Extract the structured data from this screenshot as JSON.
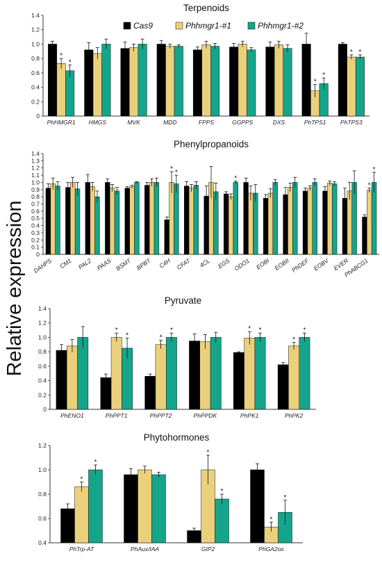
{
  "ylabel": "Relative expression",
  "series_names": [
    "Cas9",
    "Phhmgr1-#1",
    "Phhmgr1-#2"
  ],
  "colors": [
    "#000000",
    "#ebd07c",
    "#15a58a"
  ],
  "chart_data": [
    {
      "type": "bar",
      "title": "Terpenoids",
      "categories": [
        "PhHMGR1",
        "HMGS",
        "MVK",
        "MDD",
        "FPPS",
        "GGPPS",
        "DXS",
        "PhTPS1",
        "PhTPS3"
      ],
      "ylim": [
        0,
        1.4
      ],
      "yticks": [
        "0",
        "0.2",
        "0.4",
        "0.6",
        "0.8",
        "1.0",
        "1.2",
        "1.4"
      ],
      "legend": "top",
      "series": [
        {
          "name": "Cas9",
          "values": [
            1.0,
            0.92,
            0.94,
            1.0,
            0.92,
            0.96,
            0.96,
            1.0,
            1.0
          ],
          "errors": [
            0.04,
            0.1,
            0.09,
            0.05,
            0.04,
            0.05,
            0.07,
            0.15,
            0.02
          ]
        },
        {
          "name": "Phhmgr1-#1",
          "values": [
            0.73,
            0.87,
            0.95,
            0.97,
            0.99,
            1.0,
            0.99,
            0.35,
            0.82
          ],
          "errors": [
            0.07,
            0.08,
            0.05,
            0.03,
            0.05,
            0.04,
            0.05,
            0.09,
            0.03
          ]
        },
        {
          "name": "Phhmgr1-#2",
          "values": [
            0.63,
            1.0,
            1.0,
            0.97,
            0.97,
            0.92,
            0.94,
            0.45,
            0.82
          ],
          "errors": [
            0.08,
            0.07,
            0.07,
            0.02,
            0.04,
            0.03,
            0.05,
            0.08,
            0.03
          ]
        }
      ],
      "significance": [
        [
          0,
          1
        ],
        [
          0,
          2
        ],
        [
          7,
          1
        ],
        [
          7,
          2
        ],
        [
          8,
          1
        ],
        [
          8,
          2
        ]
      ]
    },
    {
      "type": "bar",
      "title": "Phenylpropanoids",
      "categories": [
        "DAHPS",
        "CM1",
        "PAL2",
        "PAAS",
        "BSMT",
        "BPBT",
        "C4H",
        "CFAT",
        "4CL",
        "EGS",
        "ODO1",
        "EOBI",
        "EOBII",
        "PhDEF",
        "EOBV",
        "EVER",
        "PhABCG1"
      ],
      "ylim": [
        0,
        1.4
      ],
      "yticks": [
        "0",
        "0.1",
        "0.2",
        "0.3",
        "0.4",
        "0.5",
        "0.6",
        "0.7",
        "0.8",
        "0.9",
        "1.0",
        "1.1",
        "1.2",
        "1.3",
        "1.4"
      ],
      "series": [
        {
          "name": "Cas9",
          "values": [
            0.92,
            0.93,
            1.0,
            1.0,
            0.92,
            0.96,
            0.48,
            0.95,
            0.81,
            0.84,
            1.0,
            0.78,
            0.83,
            0.88,
            0.88,
            0.78,
            0.52
          ],
          "errors": [
            0.06,
            0.07,
            0.11,
            0.05,
            0.02,
            0.04,
            0.04,
            0.06,
            0.14,
            0.03,
            0.06,
            0.05,
            0.1,
            0.04,
            0.06,
            0.14,
            0.03
          ]
        },
        {
          "name": "Phhmgr1-#1",
          "values": [
            0.98,
            1.0,
            0.94,
            0.92,
            0.94,
            1.0,
            1.0,
            0.92,
            1.0,
            0.8,
            0.85,
            0.85,
            0.93,
            0.92,
            0.99,
            0.88,
            0.89
          ],
          "errors": [
            0.08,
            0.07,
            0.06,
            0.05,
            0.02,
            0.05,
            0.15,
            0.05,
            0.22,
            0.04,
            0.1,
            0.06,
            0.06,
            0.03,
            0.03,
            0.12,
            0.03
          ]
        },
        {
          "name": "Phhmgr1-#2",
          "values": [
            0.95,
            0.91,
            0.8,
            0.88,
            1.0,
            1.0,
            0.98,
            0.96,
            0.87,
            1.0,
            0.85,
            1.0,
            1.0,
            1.0,
            0.98,
            1.0,
            1.0
          ],
          "errors": [
            0.06,
            0.09,
            0.08,
            0.05,
            0.01,
            0.06,
            0.12,
            0.05,
            0.12,
            0.02,
            0.12,
            0.04,
            0.07,
            0.05,
            0.03,
            0.16,
            0.14
          ]
        }
      ],
      "significance": [
        [
          6,
          1
        ],
        [
          6,
          2
        ],
        [
          9,
          2
        ],
        [
          16,
          1
        ],
        [
          16,
          2
        ]
      ]
    },
    {
      "type": "bar",
      "title": "Pyruvate",
      "categories": [
        "PhENO1",
        "PhPPT1",
        "PhPPT2",
        "PhPPDK",
        "PhPK1",
        "PhPK2"
      ],
      "ylim": [
        0,
        1.4
      ],
      "yticks": [
        "0",
        "0.2",
        "0.4",
        "0.6",
        "0.8",
        "1.0",
        "1.2",
        "1.4"
      ],
      "series": [
        {
          "name": "Cas9",
          "values": [
            0.82,
            0.44,
            0.46,
            0.95,
            0.79,
            0.62
          ],
          "errors": [
            0.08,
            0.05,
            0.03,
            0.1,
            0.01,
            0.03
          ]
        },
        {
          "name": "Phhmgr1-#1",
          "values": [
            0.88,
            1.0,
            0.9,
            0.94,
            0.99,
            0.88
          ],
          "errors": [
            0.09,
            0.06,
            0.06,
            0.1,
            0.09,
            0.05
          ]
        },
        {
          "name": "Phhmgr1-#2",
          "values": [
            1.0,
            0.85,
            1.0,
            1.0,
            1.0,
            1.0
          ],
          "errors": [
            0.15,
            0.14,
            0.06,
            0.07,
            0.06,
            0.06
          ]
        }
      ],
      "significance": [
        [
          1,
          1
        ],
        [
          1,
          2
        ],
        [
          2,
          1
        ],
        [
          2,
          2
        ],
        [
          4,
          1
        ],
        [
          4,
          2
        ],
        [
          5,
          1
        ],
        [
          5,
          2
        ]
      ]
    },
    {
      "type": "bar",
      "title": "Phytohormones",
      "categories": [
        "PhTrp-AT",
        "PhAux/IAA",
        "GIP2",
        "PhGA2ox"
      ],
      "ylim": [
        0.4,
        1.2
      ],
      "yticks": [
        "0.4",
        "0.6",
        "0.8",
        "1.0",
        "1.2"
      ],
      "series": [
        {
          "name": "Cas9",
          "values": [
            0.68,
            0.96,
            0.5,
            1.0
          ],
          "errors": [
            0.04,
            0.05,
            0.02,
            0.05
          ]
        },
        {
          "name": "Phhmgr1-#1",
          "values": [
            0.86,
            1.0,
            1.0,
            0.53
          ],
          "errors": [
            0.04,
            0.03,
            0.12,
            0.04
          ]
        },
        {
          "name": "Phhmgr1-#2",
          "values": [
            1.0,
            0.96,
            0.76,
            0.65
          ],
          "errors": [
            0.04,
            0.02,
            0.04,
            0.1
          ]
        }
      ],
      "significance": [
        [
          0,
          1
        ],
        [
          0,
          2
        ],
        [
          2,
          1
        ],
        [
          2,
          2
        ],
        [
          3,
          1
        ],
        [
          3,
          2
        ]
      ]
    }
  ]
}
